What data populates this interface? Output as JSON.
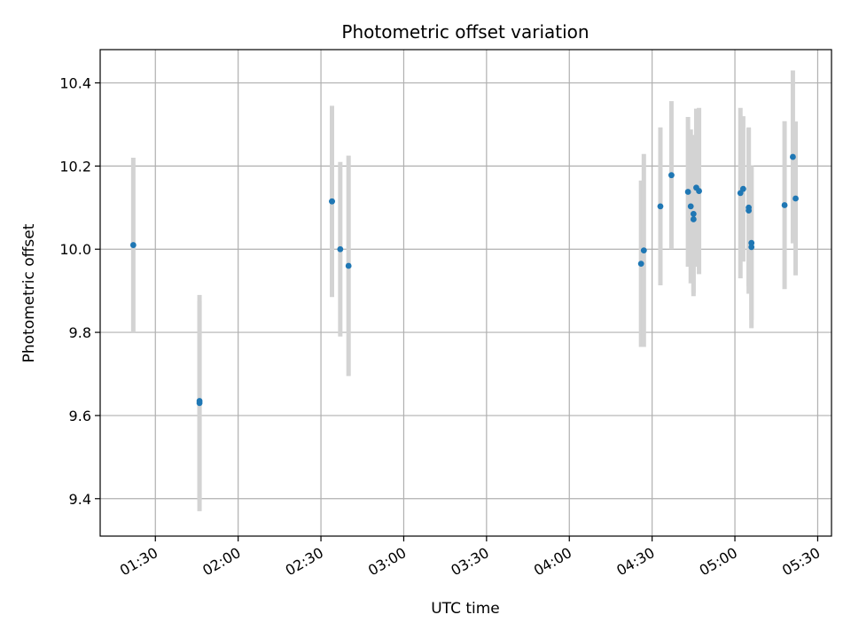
{
  "chart_data": {
    "type": "scatter",
    "title": "Photometric offset variation",
    "xlabel": "UTC time",
    "ylabel": "Photometric offset",
    "x_axis_type": "time",
    "xlim": [
      "01:10",
      "05:35"
    ],
    "ylim": [
      9.31,
      10.48
    ],
    "x_ticks": [
      "01:30",
      "02:00",
      "02:30",
      "03:00",
      "03:30",
      "04:00",
      "04:30",
      "05:00",
      "05:30"
    ],
    "y_ticks": [
      9.4,
      9.6,
      9.8,
      10.0,
      10.2,
      10.4
    ],
    "y_tick_labels": [
      "9.4",
      "9.6",
      "9.8",
      "10.0",
      "10.2",
      "10.4"
    ],
    "grid": true,
    "marker_color": "#1f77b4",
    "errorbar_color": "#d3d3d3",
    "points": [
      {
        "x": "01:22",
        "y": 10.01,
        "err": 0.21
      },
      {
        "x": "01:46",
        "y": 9.63,
        "err": 0.26
      },
      {
        "x": "01:46",
        "y": 9.635,
        "err": 0.24
      },
      {
        "x": "02:34",
        "y": 10.115,
        "err": 0.23
      },
      {
        "x": "02:34",
        "y": 10.115,
        "err": 0.22
      },
      {
        "x": "02:37",
        "y": 10.0,
        "err": 0.21
      },
      {
        "x": "02:40",
        "y": 9.96,
        "err": 0.265
      },
      {
        "x": "04:26",
        "y": 9.965,
        "err": 0.2
      },
      {
        "x": "04:27",
        "y": 9.997,
        "err": 0.232
      },
      {
        "x": "04:33",
        "y": 10.103,
        "err": 0.19
      },
      {
        "x": "04:37",
        "y": 10.178,
        "err": 0.178
      },
      {
        "x": "04:43",
        "y": 10.138,
        "err": 0.18
      },
      {
        "x": "04:44",
        "y": 10.103,
        "err": 0.185
      },
      {
        "x": "04:45",
        "y": 10.072,
        "err": 0.185
      },
      {
        "x": "04:45",
        "y": 10.085,
        "err": 0.19
      },
      {
        "x": "04:46",
        "y": 10.148,
        "err": 0.19
      },
      {
        "x": "04:47",
        "y": 10.14,
        "err": 0.2
      },
      {
        "x": "05:02",
        "y": 10.135,
        "err": 0.205
      },
      {
        "x": "05:03",
        "y": 10.145,
        "err": 0.175
      },
      {
        "x": "05:05",
        "y": 10.1,
        "err": 0.19
      },
      {
        "x": "05:05",
        "y": 10.093,
        "err": 0.2
      },
      {
        "x": "05:06",
        "y": 10.015,
        "err": 0.185
      },
      {
        "x": "05:06",
        "y": 10.005,
        "err": 0.195
      },
      {
        "x": "05:18",
        "y": 10.106,
        "err": 0.202
      },
      {
        "x": "05:21",
        "y": 10.222,
        "err": 0.208
      },
      {
        "x": "05:22",
        "y": 10.122,
        "err": 0.185
      }
    ]
  }
}
